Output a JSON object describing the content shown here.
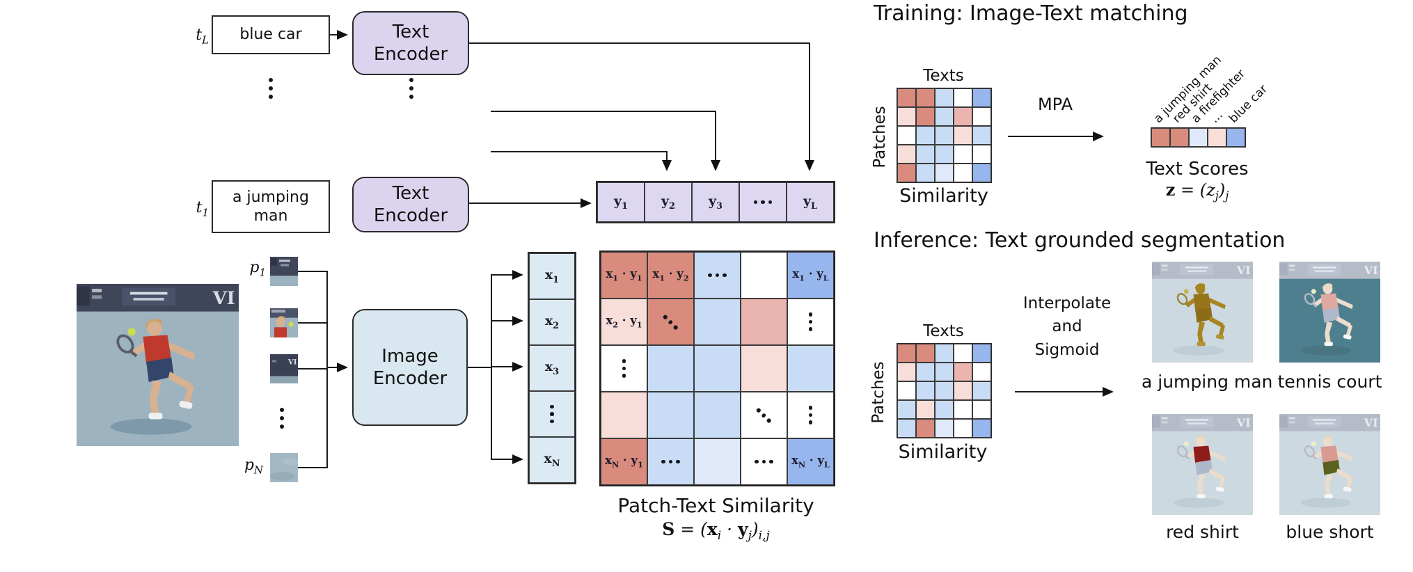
{
  "colors": {
    "red": "#d98b7e",
    "mpink": "#eab5ae",
    "lpink": "#f8ded9",
    "lblue": "#c8dcf5",
    "vlblue": "#dfe9fa",
    "blue": "#98b6ee",
    "white": "#ffffff",
    "encoder_purple": "#dcd4ef",
    "vector_purple": "#ded7f1",
    "encoder_blue": "#d8e7f0",
    "vector_blue": "#dcebf3"
  },
  "left": {
    "inputs": [
      {
        "tag": "t_L",
        "text": "blue car"
      },
      {
        "tag": "t_1",
        "text": "a jumping man"
      }
    ],
    "text_encoder_label": "Text Encoder",
    "image_encoder_label": "Image Encoder",
    "patch_first_tag": "p_1",
    "patch_last_tag": "p_N",
    "y_cells": [
      {
        "t": "**y**_1"
      },
      {
        "t": "**y**_2"
      },
      {
        "t": "**y**_3"
      },
      {
        "d": "h"
      },
      {
        "t": "**y**_L"
      }
    ],
    "x_cells": [
      {
        "t": "**x**_1"
      },
      {
        "t": "**x**_2"
      },
      {
        "t": "**x**_3"
      },
      {
        "d": "v"
      },
      {
        "t": "**x**_N"
      }
    ],
    "matrix": [
      [
        {
          "c": "red",
          "t": "**x**_1 · **y**_1"
        },
        {
          "c": "red",
          "t": "**x**_1 · **y**_2"
        },
        {
          "c": "lblue",
          "d": "h"
        },
        {
          "c": "white"
        },
        {
          "c": "blue",
          "t": "**x**_1 · **y**_L"
        }
      ],
      [
        {
          "c": "lpink",
          "t": "**x**_2 · **y**_1"
        },
        {
          "c": "red",
          "d": "d"
        },
        {
          "c": "lblue"
        },
        {
          "c": "mpink"
        },
        {
          "c": "white",
          "d": "v"
        }
      ],
      [
        {
          "c": "white",
          "d": "v"
        },
        {
          "c": "lblue"
        },
        {
          "c": "lblue"
        },
        {
          "c": "lpink"
        },
        {
          "c": "lblue"
        }
      ],
      [
        {
          "c": "lpink"
        },
        {
          "c": "lblue"
        },
        {
          "c": "lblue"
        },
        {
          "c": "white",
          "d": "d"
        },
        {
          "c": "white",
          "d": "v"
        }
      ],
      [
        {
          "c": "red",
          "t": "**x**_N · **y**_1"
        },
        {
          "c": "lblue",
          "d": "h"
        },
        {
          "c": "vlblue"
        },
        {
          "c": "white",
          "d": "h"
        },
        {
          "c": "blue",
          "t": "**x**_N · **y**_L"
        }
      ]
    ],
    "caption": "Patch-Text Similarity",
    "formula": "**S** = (**x**_i · **y**_j)_i,j"
  },
  "training": {
    "title": "Training: Image-Text matching",
    "texts_label": "Texts",
    "patches_label": "Patches",
    "similarity_label": "Similarity",
    "arrow_label": "MPA",
    "matrix": [
      [
        "red",
        "red",
        "lblue",
        "white",
        "blue"
      ],
      [
        "lpink",
        "red",
        "lblue",
        "mpink",
        "white"
      ],
      [
        "white",
        "lblue",
        "lblue",
        "lpink",
        "lblue"
      ],
      [
        "lpink",
        "lblue",
        "lblue",
        "white",
        "white"
      ],
      [
        "red",
        "lblue",
        "vlblue",
        "white",
        "blue"
      ]
    ],
    "score_cells": [
      "red",
      "red",
      "vlblue",
      "lpink",
      "blue"
    ],
    "score_labels": [
      "a jumping man",
      "red shirt",
      "a firefighter",
      "...",
      "blue car"
    ],
    "score_caption": "Text Scores",
    "score_formula": "**z** = (z_j)_j"
  },
  "inference": {
    "title": "Inference: Text grounded segmentation",
    "texts_label": "Texts",
    "patches_label": "Patches",
    "similarity_label": "Similarity",
    "arrow_lines": [
      "Interpolate",
      "and",
      "Sigmoid"
    ],
    "matrix": [
      [
        "red",
        "red",
        "lblue",
        "white",
        "blue"
      ],
      [
        "lpink",
        "lblue",
        "lblue",
        "mpink",
        "white"
      ],
      [
        "white",
        "lblue",
        "lblue",
        "lpink",
        "lblue"
      ],
      [
        "lblue",
        "lpink",
        "lblue",
        "white",
        "white"
      ],
      [
        "lblue",
        "red",
        "vlblue",
        "white",
        "blue"
      ]
    ],
    "segmentations": [
      {
        "label": "a jumping man",
        "mode": "man"
      },
      {
        "label": "tennis court",
        "mode": "court"
      },
      {
        "label": "red shirt",
        "mode": "shirt"
      },
      {
        "label": "blue short",
        "mode": "short"
      }
    ]
  }
}
